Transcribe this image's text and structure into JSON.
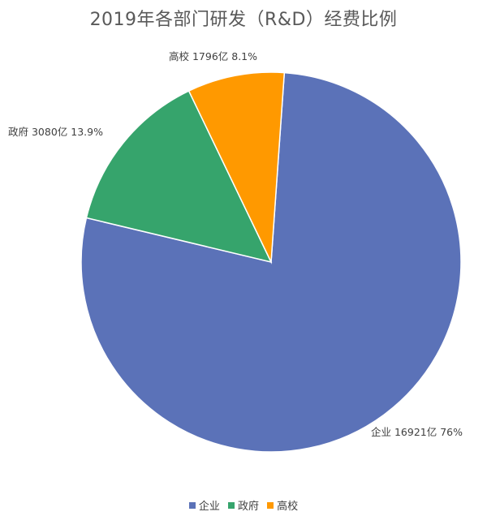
{
  "chart_data": {
    "type": "pie",
    "title": "2019年各部门研发（R&D）经费比例",
    "slices": [
      {
        "name": "企业",
        "value": 16921,
        "percent_label": "76%",
        "label": "企业 16921亿 76%",
        "color": "#5b72b8"
      },
      {
        "name": "政府",
        "value": 3080,
        "percent_label": "13.9%",
        "label": "政府 3080亿 13.9%",
        "color": "#36a46c"
      },
      {
        "name": "高校",
        "value": 1796,
        "percent_label": "8.1%",
        "label": "高校 1796亿 8.1%",
        "color": "#ff9900"
      }
    ],
    "legend_position": "bottom"
  }
}
